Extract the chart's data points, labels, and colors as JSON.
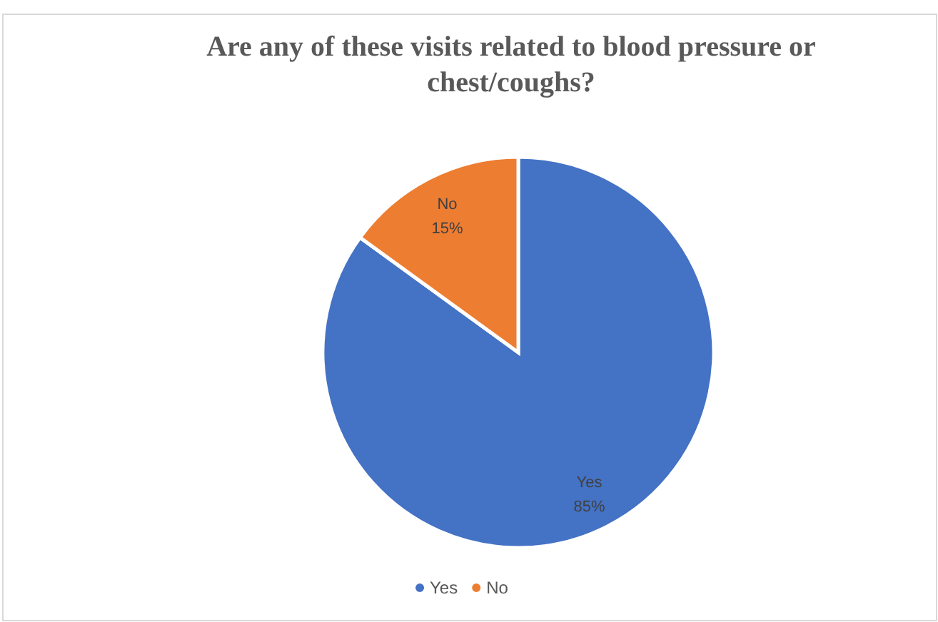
{
  "chart_data": {
    "type": "pie",
    "title": "Are any of these visits related to blood pressure or chest/coughs?",
    "categories": [
      "Yes",
      "No"
    ],
    "values": [
      85,
      15
    ],
    "colors": [
      "#4472c4",
      "#ed7d31"
    ],
    "value_labels": [
      "85%",
      "15%"
    ],
    "legend": "bottom"
  }
}
